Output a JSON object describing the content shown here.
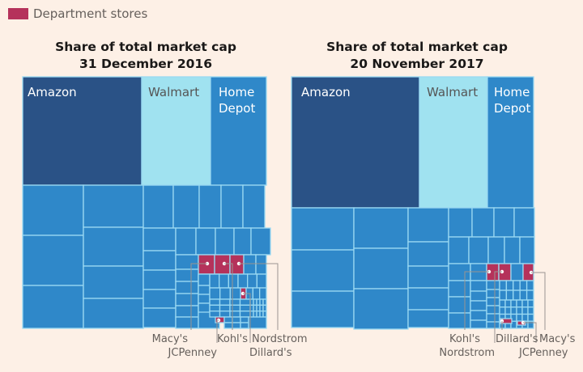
{
  "legend": {
    "label": "Department stores",
    "color": "#b5325b"
  },
  "colors": {
    "amazon": "#2a5286",
    "walmart": "#a0e2f0",
    "home_depot": "#2f88c9",
    "other": "#2f88c9",
    "department_store": "#b5325b",
    "cell_border": "#9ad9f2",
    "background": "#fdf0e6"
  },
  "chart_data": {
    "type": "treemap",
    "legend": [
      {
        "label": "Department stores",
        "color": "#b5325b"
      }
    ],
    "panels": [
      {
        "title_line1": "Share of total market cap",
        "title_line2": "31 December 2016",
        "labeled_tiles": [
          {
            "name": "Amazon",
            "rank": 1
          },
          {
            "name": "Walmart",
            "rank": 2
          },
          {
            "name": "Home Depot",
            "rank": 3
          }
        ],
        "department_stores": [
          "Macy's",
          "JCPenney",
          "Kohl's",
          "Nordstrom",
          "Dillard's"
        ],
        "callout_labels": [
          "Macy's",
          "JCPenney",
          "Kohl's",
          "Dillard's",
          "Nordstrom"
        ]
      },
      {
        "title_line1": "Share of total market cap",
        "title_line2": "20 November 2017",
        "labeled_tiles": [
          {
            "name": "Amazon",
            "rank": 1
          },
          {
            "name": "Walmart",
            "rank": 2
          },
          {
            "name": "Home Depot",
            "rank": 3
          }
        ],
        "department_stores": [
          "Kohl's",
          "Nordstrom",
          "Dillard's",
          "Macy's",
          "JCPenney"
        ],
        "callout_labels": [
          "Kohl's",
          "Nordstrom",
          "Dillard's",
          "Macy's",
          "JCPenney"
        ]
      }
    ]
  }
}
